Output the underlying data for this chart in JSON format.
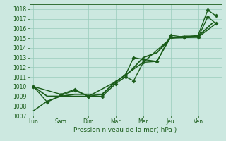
{
  "title": "",
  "xlabel": "Pression niveau de la mer( hPa )",
  "ylabel": "",
  "background_color": "#cce8e0",
  "grid_color": "#99ccbb",
  "line_color": "#1a5c1a",
  "ylim": [
    1007,
    1018.5
  ],
  "yticks": [
    1007,
    1008,
    1009,
    1010,
    1011,
    1012,
    1013,
    1014,
    1015,
    1016,
    1017,
    1018
  ],
  "x_labels": [
    "Lun",
    "Sam",
    "Dim",
    "Mar",
    "Mer",
    "Jeu",
    "Ven"
  ],
  "x_tick_positions": [
    0,
    1,
    2,
    3,
    4,
    5,
    6
  ],
  "xlim": [
    -0.15,
    6.85
  ],
  "series": [
    {
      "x": [
        0,
        0.5,
        1.0,
        1.5,
        2.0,
        2.5,
        3.0,
        3.35,
        3.65,
        4.0,
        4.5,
        5.0,
        5.5,
        6.0,
        6.35,
        6.65
      ],
      "y": [
        1010.0,
        1008.4,
        1009.1,
        1009.6,
        1009.0,
        1009.0,
        1010.3,
        1011.0,
        1010.6,
        1012.5,
        1012.6,
        1015.1,
        1015.1,
        1015.1,
        1017.2,
        1016.5
      ],
      "marker": "D",
      "markersize": 2.5,
      "linewidth": 1.0
    },
    {
      "x": [
        0,
        1.0,
        1.5,
        2.0,
        2.5,
        3.0,
        3.35,
        3.65,
        4.0,
        4.5,
        5.0,
        5.5,
        6.0,
        6.35,
        6.65
      ],
      "y": [
        1010.0,
        1009.2,
        1009.7,
        1009.0,
        1009.2,
        1010.5,
        1011.2,
        1013.0,
        1012.8,
        1012.6,
        1015.3,
        1015.1,
        1015.3,
        1017.9,
        1017.3
      ],
      "marker": "D",
      "markersize": 2.5,
      "linewidth": 1.0
    },
    {
      "x": [
        0,
        0.5,
        1.0,
        1.5,
        2.0,
        2.5,
        3.0,
        3.5,
        4.0,
        4.5,
        5.0,
        5.5,
        6.0,
        6.5
      ],
      "y": [
        1010.0,
        1009.0,
        1009.0,
        1009.2,
        1009.2,
        1009.2,
        1010.5,
        1011.5,
        1013.0,
        1013.5,
        1015.0,
        1015.2,
        1015.2,
        1016.5
      ],
      "marker": null,
      "markersize": 0,
      "linewidth": 1.3
    },
    {
      "x": [
        0,
        0.5,
        1.0,
        2.0,
        3.0,
        4.0,
        5.0,
        6.0,
        6.65
      ],
      "y": [
        1007.5,
        1008.5,
        1009.0,
        1009.0,
        1010.5,
        1012.5,
        1015.0,
        1015.1,
        1016.5
      ],
      "marker": null,
      "markersize": 0,
      "linewidth": 1.1
    }
  ]
}
